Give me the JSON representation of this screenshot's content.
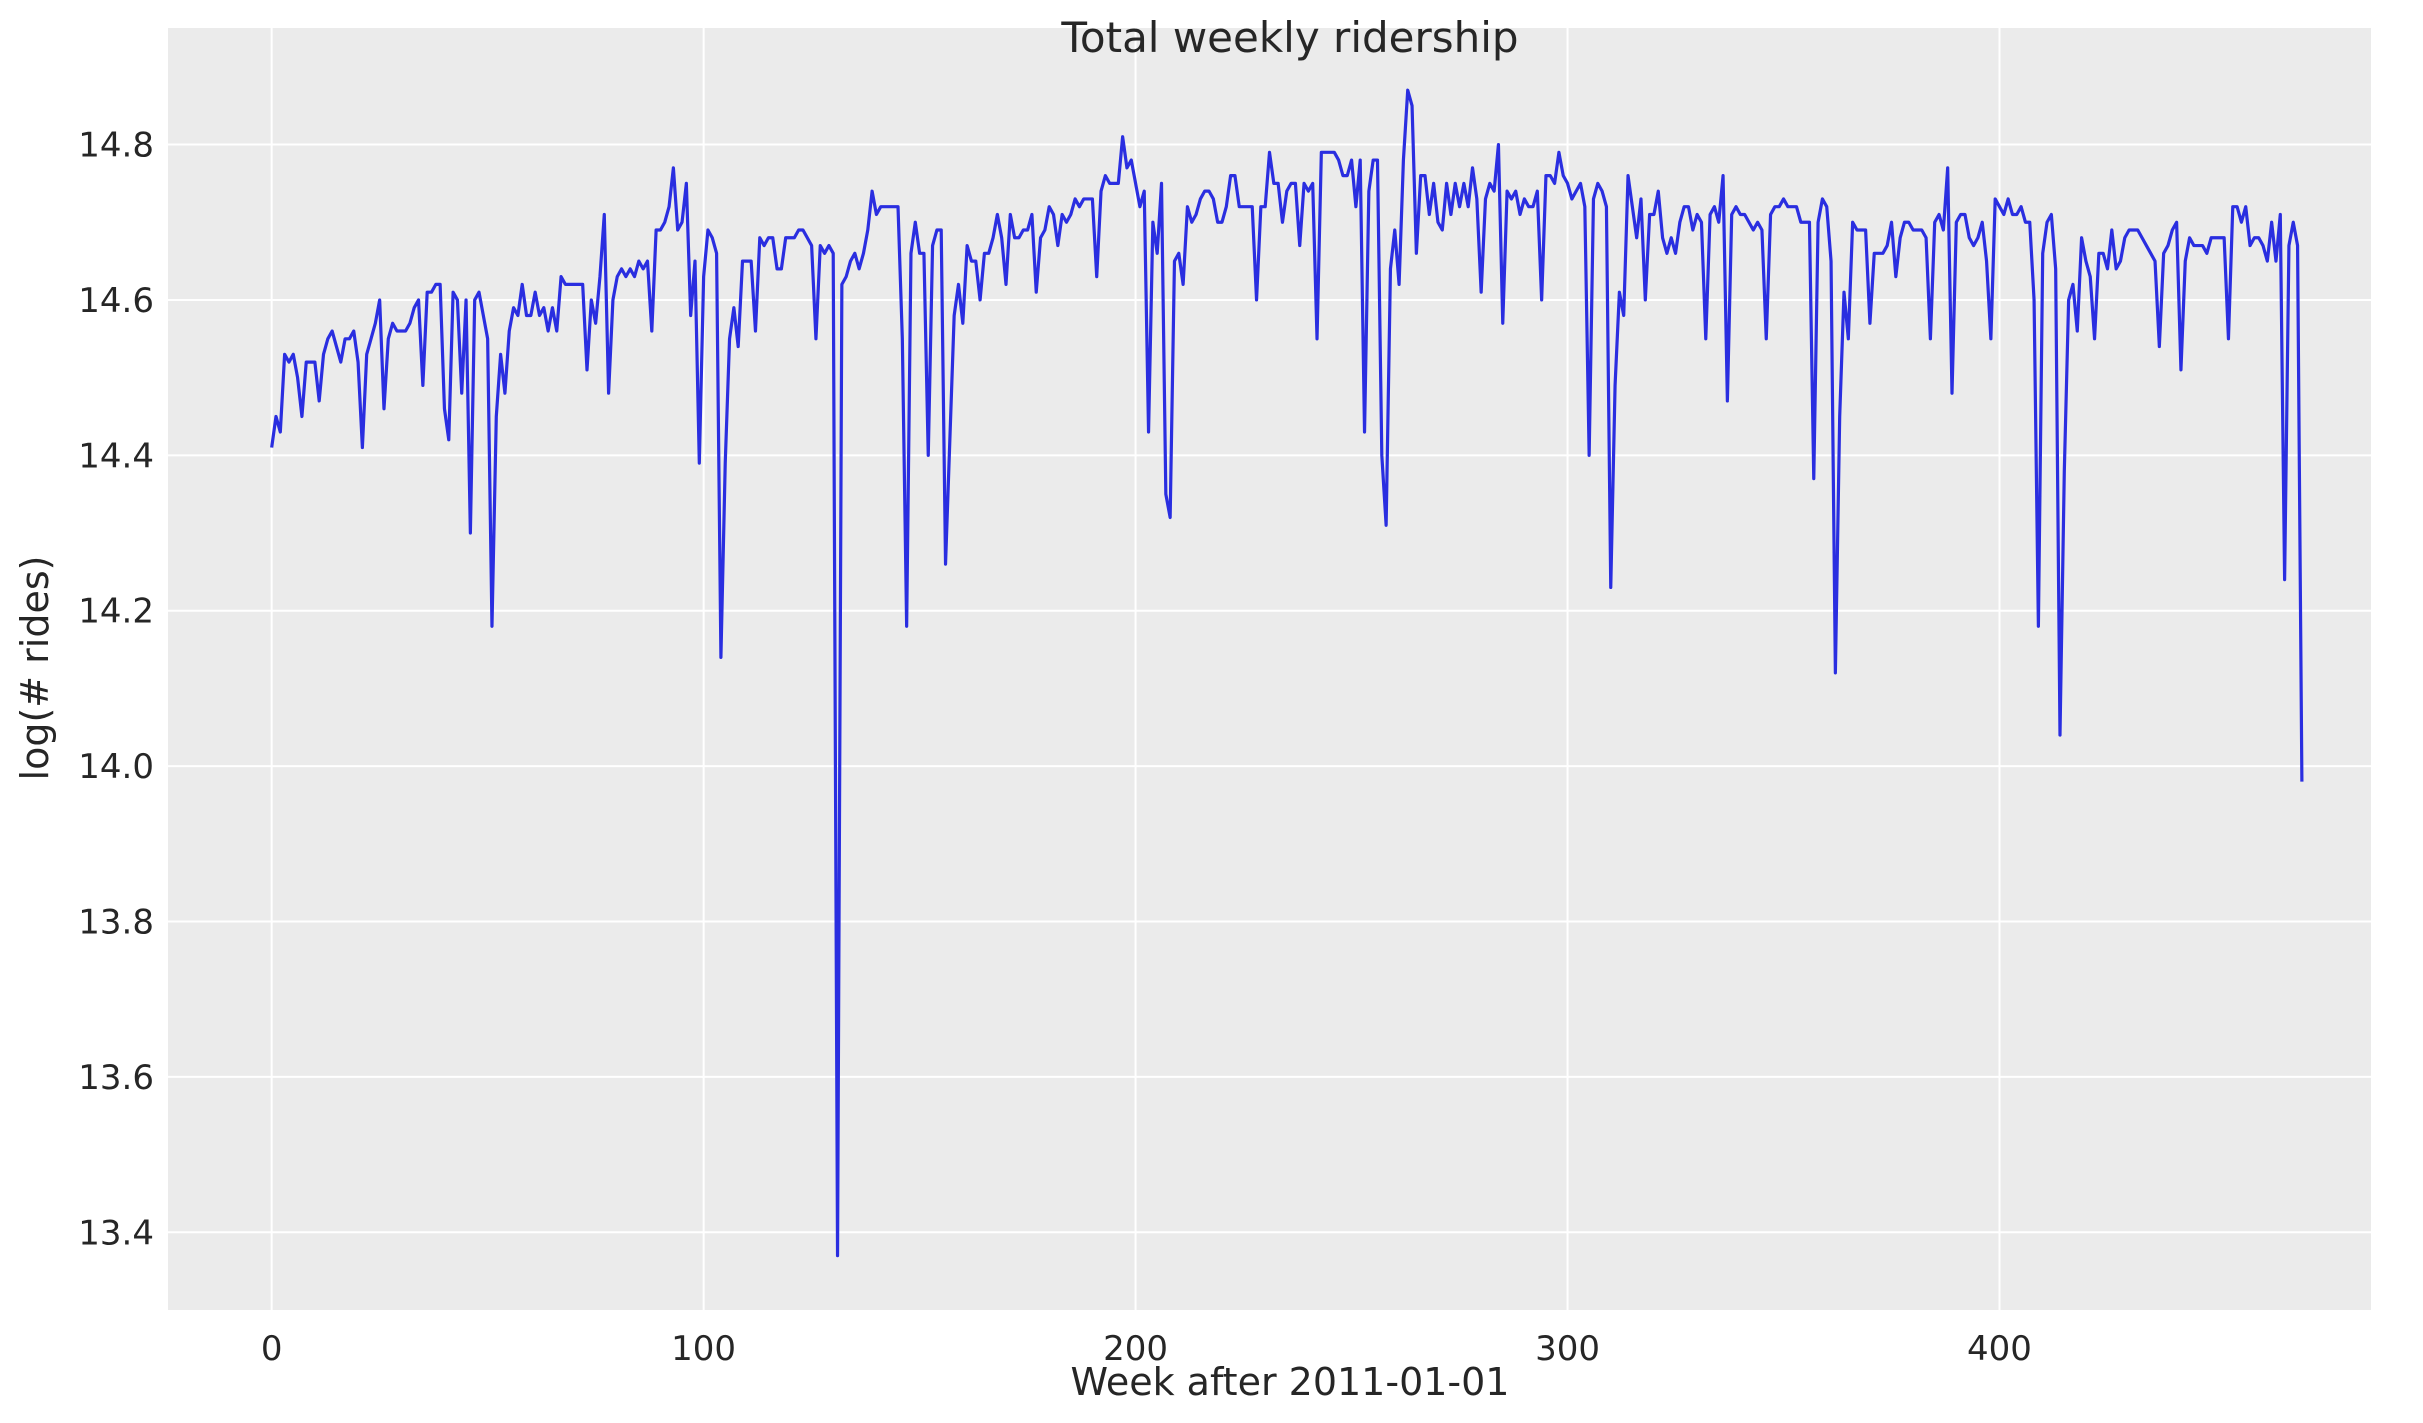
{
  "chart_data": {
    "type": "line",
    "title": "Total weekly ridership",
    "xlabel": "Week after 2011-01-01",
    "ylabel": "log(# rides)",
    "xlim": [
      -24,
      486
    ],
    "ylim": [
      13.3,
      14.95
    ],
    "x_ticks": [
      0,
      100,
      200,
      300,
      400
    ],
    "x_tick_labels": [
      "0",
      "100",
      "200",
      "300",
      "400"
    ],
    "y_ticks": [
      13.4,
      13.6,
      13.8,
      14.0,
      14.2,
      14.4,
      14.6,
      14.8
    ],
    "y_tick_labels": [
      "13.4",
      "13.6",
      "13.8",
      "14.0",
      "14.2",
      "14.4",
      "14.6",
      "14.8"
    ],
    "grid": true,
    "colors": {
      "background": "#ebebeb",
      "grid": "#ffffff",
      "line": "#2a2ee0"
    },
    "series": [
      {
        "values": [
          14.41,
          14.45,
          14.43,
          14.53,
          14.52,
          14.53,
          14.5,
          14.45,
          14.52,
          14.52,
          14.52,
          14.47,
          14.53,
          14.55,
          14.56,
          14.54,
          14.52,
          14.55,
          14.55,
          14.56,
          14.52,
          14.41,
          14.53,
          14.55,
          14.57,
          14.6,
          14.46,
          14.55,
          14.57,
          14.56,
          14.56,
          14.56,
          14.57,
          14.59,
          14.6,
          14.49,
          14.61,
          14.61,
          14.62,
          14.62,
          14.46,
          14.42,
          14.61,
          14.6,
          14.48,
          14.6,
          14.3,
          14.6,
          14.61,
          14.58,
          14.55,
          14.18,
          14.45,
          14.53,
          14.48,
          14.56,
          14.59,
          14.58,
          14.62,
          14.58,
          14.58,
          14.61,
          14.58,
          14.59,
          14.56,
          14.59,
          14.56,
          14.63,
          14.62,
          14.62,
          14.62,
          14.62,
          14.62,
          14.51,
          14.6,
          14.57,
          14.63,
          14.71,
          14.48,
          14.6,
          14.63,
          14.64,
          14.63,
          14.64,
          14.63,
          14.65,
          14.64,
          14.65,
          14.56,
          14.69,
          14.69,
          14.7,
          14.72,
          14.77,
          14.69,
          14.7,
          14.75,
          14.58,
          14.65,
          14.39,
          14.63,
          14.69,
          14.68,
          14.66,
          14.14,
          14.39,
          14.55,
          14.59,
          14.54,
          14.65,
          14.65,
          14.65,
          14.56,
          14.68,
          14.67,
          14.68,
          14.68,
          14.64,
          14.64,
          14.68,
          14.68,
          14.68,
          14.69,
          14.69,
          14.68,
          14.67,
          14.55,
          14.67,
          14.66,
          14.67,
          14.66,
          13.37,
          14.62,
          14.63,
          14.65,
          14.66,
          14.64,
          14.66,
          14.69,
          14.74,
          14.71,
          14.72,
          14.72,
          14.72,
          14.72,
          14.72,
          14.55,
          14.18,
          14.66,
          14.7,
          14.66,
          14.66,
          14.4,
          14.67,
          14.69,
          14.69,
          14.26,
          14.42,
          14.58,
          14.62,
          14.57,
          14.67,
          14.65,
          14.65,
          14.6,
          14.66,
          14.66,
          14.68,
          14.71,
          14.68,
          14.62,
          14.71,
          14.68,
          14.68,
          14.69,
          14.69,
          14.71,
          14.61,
          14.68,
          14.69,
          14.72,
          14.71,
          14.67,
          14.71,
          14.7,
          14.71,
          14.73,
          14.72,
          14.73,
          14.73,
          14.73,
          14.63,
          14.74,
          14.76,
          14.75,
          14.75,
          14.75,
          14.81,
          14.77,
          14.78,
          14.75,
          14.72,
          14.74,
          14.43,
          14.7,
          14.66,
          14.75,
          14.35,
          14.32,
          14.65,
          14.66,
          14.62,
          14.72,
          14.7,
          14.71,
          14.73,
          14.74,
          14.74,
          14.73,
          14.7,
          14.7,
          14.72,
          14.76,
          14.76,
          14.72,
          14.72,
          14.72,
          14.72,
          14.6,
          14.72,
          14.72,
          14.79,
          14.75,
          14.75,
          14.7,
          14.74,
          14.75,
          14.75,
          14.67,
          14.75,
          14.74,
          14.75,
          14.55,
          14.79,
          14.79,
          14.79,
          14.79,
          14.78,
          14.76,
          14.76,
          14.78,
          14.72,
          14.78,
          14.43,
          14.74,
          14.78,
          14.78,
          14.4,
          14.31,
          14.64,
          14.69,
          14.62,
          14.78,
          14.87,
          14.85,
          14.66,
          14.76,
          14.76,
          14.71,
          14.75,
          14.7,
          14.69,
          14.75,
          14.71,
          14.75,
          14.72,
          14.75,
          14.72,
          14.77,
          14.73,
          14.61,
          14.73,
          14.75,
          14.74,
          14.8,
          14.57,
          14.74,
          14.73,
          14.74,
          14.71,
          14.73,
          14.72,
          14.72,
          14.74,
          14.6,
          14.76,
          14.76,
          14.75,
          14.79,
          14.76,
          14.75,
          14.73,
          14.74,
          14.75,
          14.72,
          14.4,
          14.73,
          14.75,
          14.74,
          14.72,
          14.23,
          14.49,
          14.61,
          14.58,
          14.76,
          14.72,
          14.68,
          14.73,
          14.6,
          14.71,
          14.71,
          14.74,
          14.68,
          14.66,
          14.68,
          14.66,
          14.7,
          14.72,
          14.72,
          14.69,
          14.71,
          14.7,
          14.55,
          14.71,
          14.72,
          14.7,
          14.76,
          14.47,
          14.71,
          14.72,
          14.71,
          14.71,
          14.7,
          14.69,
          14.7,
          14.69,
          14.55,
          14.71,
          14.72,
          14.72,
          14.73,
          14.72,
          14.72,
          14.72,
          14.7,
          14.7,
          14.7,
          14.37,
          14.7,
          14.73,
          14.72,
          14.65,
          14.12,
          14.45,
          14.61,
          14.55,
          14.7,
          14.69,
          14.69,
          14.69,
          14.57,
          14.66,
          14.66,
          14.66,
          14.67,
          14.7,
          14.63,
          14.68,
          14.7,
          14.7,
          14.69,
          14.69,
          14.69,
          14.68,
          14.55,
          14.7,
          14.71,
          14.69,
          14.77,
          14.48,
          14.7,
          14.71,
          14.71,
          14.68,
          14.67,
          14.68,
          14.7,
          14.65,
          14.55,
          14.73,
          14.72,
          14.71,
          14.73,
          14.71,
          14.71,
          14.72,
          14.7,
          14.7,
          14.6,
          14.18,
          14.66,
          14.7,
          14.71,
          14.64,
          14.04,
          14.38,
          14.6,
          14.62,
          14.56,
          14.68,
          14.65,
          14.63,
          14.55,
          14.66,
          14.66,
          14.64,
          14.69,
          14.64,
          14.65,
          14.68,
          14.69,
          14.69,
          14.69,
          14.68,
          14.67,
          14.66,
          14.65,
          14.54,
          14.66,
          14.67,
          14.69,
          14.7,
          14.51,
          14.65,
          14.68,
          14.67,
          14.67,
          14.67,
          14.66,
          14.68,
          14.68,
          14.68,
          14.68,
          14.55,
          14.72,
          14.72,
          14.7,
          14.72,
          14.67,
          14.68,
          14.68,
          14.67,
          14.65,
          14.7,
          14.65,
          14.71,
          14.24,
          14.67,
          14.7,
          14.67,
          13.98
        ]
      }
    ]
  }
}
